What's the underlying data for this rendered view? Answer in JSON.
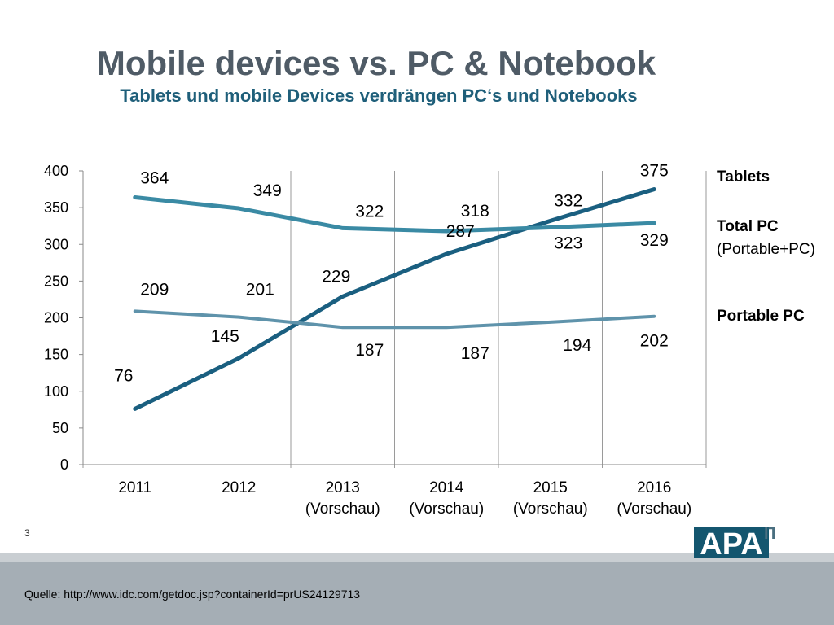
{
  "slide": {
    "title": "Mobile devices vs. PC & Notebook",
    "subtitle": "Tablets und mobile Devices verdrängen PC‘s und Notebooks",
    "page_number": "3",
    "source": "Quelle: http://www.idc.com/getdoc.jsp?containerId=prUS24129713",
    "logo_text": "APA",
    "logo_superscript": "IT"
  },
  "chart_data": {
    "type": "line",
    "categories": [
      [
        "2011"
      ],
      [
        "2012"
      ],
      [
        "2013",
        "(Vorschau)"
      ],
      [
        "2014",
        "(Vorschau)"
      ],
      [
        "2015",
        "(Vorschau)"
      ],
      [
        "2016",
        "(Vorschau)"
      ]
    ],
    "yticks": [
      "0",
      "50",
      "100",
      "150",
      "200",
      "250",
      "300",
      "350",
      "400"
    ],
    "ylim": [
      0,
      400
    ],
    "grid": "vertical",
    "legend_position": "right",
    "series": [
      {
        "key": "tablets",
        "name": "Tablets",
        "color": "#1a5f80",
        "values": [
          76,
          145,
          229,
          287,
          332,
          375
        ],
        "labels": [
          "76",
          "145",
          "229",
          "287",
          "332",
          "375"
        ]
      },
      {
        "key": "total_pc",
        "name": "Total PC",
        "name_sub": "(Portable+PC)",
        "color": "#3a8aa4",
        "values": [
          364,
          349,
          322,
          318,
          323,
          329
        ],
        "labels": [
          "364",
          "349",
          "322",
          "318",
          "323",
          "329"
        ]
      },
      {
        "key": "portable_pc",
        "name": "Portable PC",
        "color": "#5f93ab",
        "values": [
          209,
          201,
          187,
          187,
          194,
          202
        ],
        "labels": [
          "209",
          "201",
          "187",
          "187",
          "194",
          "202"
        ]
      }
    ]
  }
}
